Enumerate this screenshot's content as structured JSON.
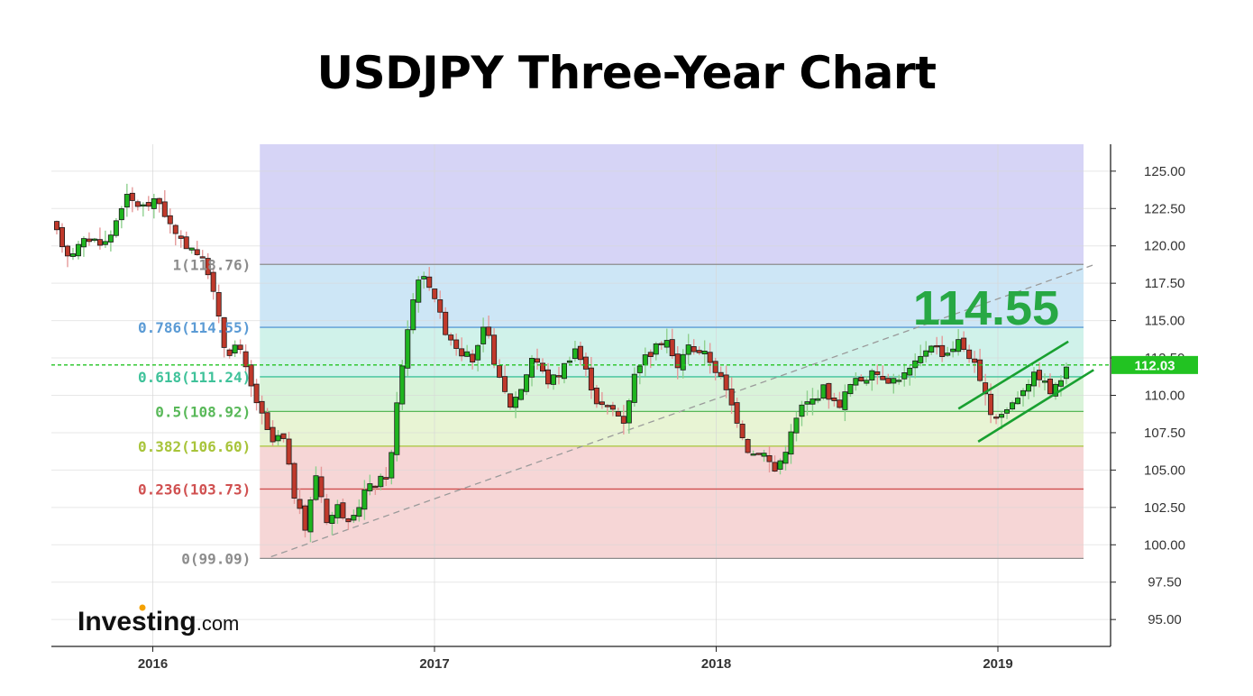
{
  "title": "USDJPY Three-Year Chart",
  "colors": {
    "up": "#1fb51f",
    "down": "#c0392b",
    "current_line": "#22c322",
    "big_label": "#27a844",
    "accent_channel": "#18a030"
  },
  "brand": {
    "name": "Investing",
    "suffix": ".com"
  },
  "annotation": {
    "value": "114.55"
  },
  "current_price": {
    "value": 112.03,
    "label": "112.03"
  },
  "chart_data": {
    "type": "candlestick",
    "ylim": [
      93.2,
      126.8
    ],
    "yticks": [
      95,
      97.5,
      100,
      102.5,
      105,
      107.5,
      110,
      112.5,
      115,
      117.5,
      120,
      122.5,
      125
    ],
    "ytick_labels": [
      "95.00",
      "97.50",
      "100.00",
      "102.50",
      "105.00",
      "107.50",
      "110.00",
      "112.50",
      "115.00",
      "117.50",
      "120.00",
      "122.50",
      "125.00"
    ],
    "x_range": [
      2015.64,
      2019.4
    ],
    "xticks": [
      2016,
      2017,
      2018,
      2019
    ],
    "xtick_labels": [
      "2016",
      "2017",
      "2018",
      "2019"
    ],
    "fibonacci": {
      "start": 2016.38,
      "levels": [
        {
          "ratio": 1,
          "value": 118.76,
          "label": "1(118.76)",
          "color": "#8c8c8c",
          "fill": "#e2e2e2"
        },
        {
          "ratio": 0.786,
          "value": 114.55,
          "label": "0.786(114.55)",
          "color": "#5b9bd5",
          "fill": "#cde6f6"
        },
        {
          "ratio": 0.618,
          "value": 111.24,
          "label": "0.618(111.24)",
          "color": "#3fc29a",
          "fill": "#d0f2ea"
        },
        {
          "ratio": 0.5,
          "value": 108.92,
          "label": "0.5(108.92)",
          "color": "#58b858",
          "fill": "#d9f3d9"
        },
        {
          "ratio": 0.382,
          "value": 106.6,
          "label": "0.382(106.60)",
          "color": "#a8c43a",
          "fill": "#e8f4d4"
        },
        {
          "ratio": 0.236,
          "value": 103.73,
          "label": "0.236(103.73)",
          "color": "#d05050",
          "fill": "#f6d6d6"
        },
        {
          "ratio": 0,
          "value": 99.09,
          "label": "0(99.09)",
          "color": "#8c8c8c",
          "fill": "#f6d6d6"
        }
      ],
      "top_fill": "#d6d4f6",
      "trend_from": {
        "t": 2016.42,
        "v": 99.2
      },
      "trend_to": {
        "t": 2019.35,
        "v": 118.8
      }
    },
    "channel": {
      "upper": [
        {
          "t": 2018.86,
          "v": 109.1
        },
        {
          "t": 2019.25,
          "v": 113.6
        }
      ],
      "lower": [
        {
          "t": 2018.93,
          "v": 106.9
        },
        {
          "t": 2019.34,
          "v": 111.7
        }
      ]
    },
    "anchors": [
      [
        2015.64,
        121.5
      ],
      [
        2015.7,
        119.4
      ],
      [
        2015.77,
        120.5
      ],
      [
        2015.84,
        120.2
      ],
      [
        2015.9,
        123.3
      ],
      [
        2015.96,
        122.6
      ],
      [
        2016.02,
        123.0
      ],
      [
        2016.09,
        120.3
      ],
      [
        2016.15,
        119.8
      ],
      [
        2016.2,
        118.2
      ],
      [
        2016.26,
        112.7
      ],
      [
        2016.3,
        113.5
      ],
      [
        2016.35,
        110.5
      ],
      [
        2016.38,
        109.0
      ],
      [
        2016.42,
        106.8
      ],
      [
        2016.46,
        107.4
      ],
      [
        2016.5,
        103.5
      ],
      [
        2016.54,
        101.0
      ],
      [
        2016.58,
        104.8
      ],
      [
        2016.62,
        101.5
      ],
      [
        2016.66,
        102.7
      ],
      [
        2016.7,
        101.0
      ],
      [
        2016.75,
        103.6
      ],
      [
        2016.8,
        104.2
      ],
      [
        2016.84,
        104.8
      ],
      [
        2016.87,
        110.0
      ],
      [
        2016.9,
        114.0
      ],
      [
        2016.94,
        118.0
      ],
      [
        2016.99,
        117.4
      ],
      [
        2017.03,
        114.6
      ],
      [
        2017.09,
        113.0
      ],
      [
        2017.14,
        112.3
      ],
      [
        2017.18,
        114.7
      ],
      [
        2017.23,
        111.0
      ],
      [
        2017.27,
        109.3
      ],
      [
        2017.31,
        110.6
      ],
      [
        2017.35,
        112.8
      ],
      [
        2017.4,
        110.9
      ],
      [
        2017.44,
        111.4
      ],
      [
        2017.5,
        113.2
      ],
      [
        2017.54,
        111.5
      ],
      [
        2017.58,
        109.4
      ],
      [
        2017.64,
        109.0
      ],
      [
        2017.67,
        108.2
      ],
      [
        2017.72,
        112.1
      ],
      [
        2017.78,
        113.0
      ],
      [
        2017.82,
        114.0
      ],
      [
        2017.86,
        111.6
      ],
      [
        2017.89,
        113.3
      ],
      [
        2017.93,
        113.1
      ],
      [
        2017.97,
        112.6
      ],
      [
        2018.02,
        111.0
      ],
      [
        2018.07,
        108.6
      ],
      [
        2018.12,
        106.0
      ],
      [
        2018.16,
        106.4
      ],
      [
        2018.21,
        104.9
      ],
      [
        2018.25,
        106.6
      ],
      [
        2018.3,
        109.2
      ],
      [
        2018.35,
        109.8
      ],
      [
        2018.38,
        110.5
      ],
      [
        2018.43,
        109.2
      ],
      [
        2018.48,
        110.8
      ],
      [
        2018.53,
        111.2
      ],
      [
        2018.57,
        111.5
      ],
      [
        2018.62,
        111.0
      ],
      [
        2018.67,
        111.4
      ],
      [
        2018.72,
        112.3
      ],
      [
        2018.76,
        113.6
      ],
      [
        2018.81,
        112.7
      ],
      [
        2018.86,
        113.6
      ],
      [
        2018.91,
        112.4
      ],
      [
        2018.94,
        110.6
      ],
      [
        2018.98,
        108.6
      ],
      [
        2019.02,
        108.8
      ],
      [
        2019.06,
        109.7
      ],
      [
        2019.1,
        110.8
      ],
      [
        2019.14,
        111.5
      ],
      [
        2019.19,
        110.1
      ],
      [
        2019.23,
        111.3
      ],
      [
        2019.26,
        112.03
      ]
    ]
  }
}
